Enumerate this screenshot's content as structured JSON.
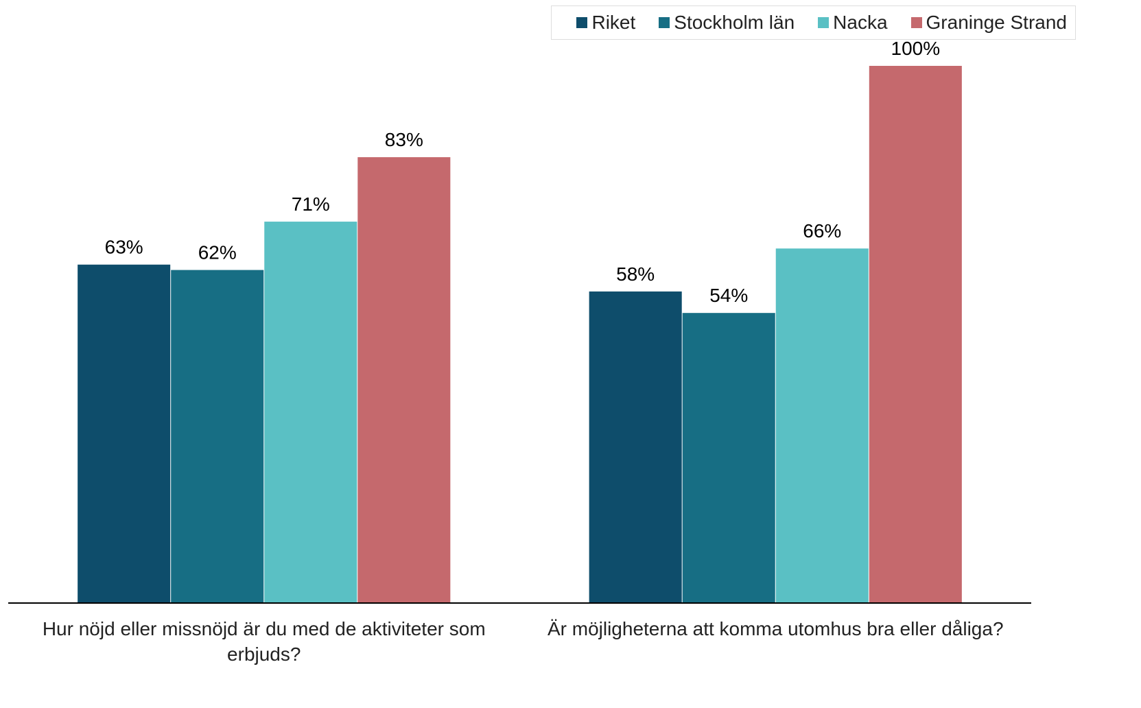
{
  "chart_data": {
    "type": "bar",
    "categories": [
      "Hur nöjd eller missnöjd är du med de aktiviteter som erbjuds?",
      "Är möjligheterna att komma utomhus bra eller dåliga?"
    ],
    "series": [
      {
        "name": "Riket",
        "color": "#0e4d6b",
        "values": [
          63,
          58
        ],
        "value_labels": [
          "63%",
          "58%"
        ]
      },
      {
        "name": "Stockholm län",
        "color": "#176e84",
        "values": [
          62,
          54
        ],
        "value_labels": [
          "62%",
          "54%"
        ]
      },
      {
        "name": "Nacka",
        "color": "#5ac0c4",
        "values": [
          71,
          66
        ],
        "value_labels": [
          "71%",
          "66%"
        ]
      },
      {
        "name": "Graninge Strand",
        "color": "#c5696d",
        "values": [
          83,
          100
        ],
        "value_labels": [
          "83%",
          "100%"
        ]
      }
    ],
    "ylim": [
      0,
      100
    ],
    "legend": "top-right"
  }
}
